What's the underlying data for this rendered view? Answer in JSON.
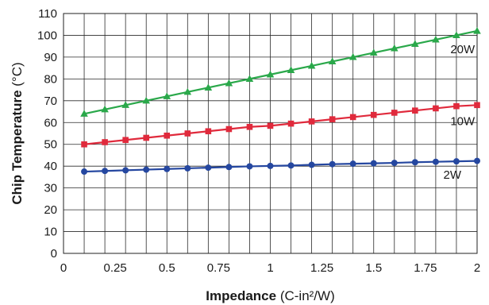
{
  "chart_data": {
    "type": "line",
    "xlabel": {
      "bold": "Impedance",
      "rest": "(C-in²/W)"
    },
    "ylabel": {
      "bold": "Chip Temperature",
      "rest": "(°C)"
    },
    "xlim": [
      0,
      2
    ],
    "ylim": [
      0,
      110
    ],
    "x_ticks": [
      "0",
      "0.25",
      "0.5",
      "0.75",
      "1",
      "1.25",
      "1.5",
      "1.75",
      "2"
    ],
    "y_ticks": [
      "0",
      "10",
      "20",
      "30",
      "40",
      "50",
      "60",
      "70",
      "80",
      "90",
      "100",
      "110"
    ],
    "x_tick_values": [
      0,
      0.25,
      0.5,
      0.75,
      1,
      1.25,
      1.5,
      1.75,
      2
    ],
    "y_tick_values": [
      0,
      10,
      20,
      30,
      40,
      50,
      60,
      70,
      80,
      90,
      100,
      110
    ],
    "grid": "vertical lines at every 0.1 impedance; horizontal lines at every 10 °C",
    "series": [
      {
        "name": "20W",
        "color": "#2aa84a",
        "marker": "triangle",
        "x": [
          0.1,
          0.2,
          0.3,
          0.4,
          0.5,
          0.6,
          0.7,
          0.8,
          0.9,
          1.0,
          1.1,
          1.2,
          1.3,
          1.4,
          1.5,
          1.6,
          1.7,
          1.8,
          1.9,
          2.0
        ],
        "values": [
          64,
          66,
          68,
          70,
          72,
          74,
          76,
          78,
          80,
          82,
          84,
          86,
          88,
          90,
          92,
          94,
          96,
          98,
          100,
          102
        ]
      },
      {
        "name": "10W",
        "color": "#e02a3c",
        "marker": "square",
        "x": [
          0.1,
          0.2,
          0.3,
          0.4,
          0.5,
          0.6,
          0.7,
          0.8,
          0.9,
          1.0,
          1.1,
          1.2,
          1.3,
          1.4,
          1.5,
          1.6,
          1.7,
          1.8,
          1.9,
          2.0
        ],
        "values": [
          50,
          51,
          52,
          53,
          54,
          55,
          56,
          57,
          58,
          58.5,
          59.5,
          60.5,
          61.5,
          62.5,
          63.5,
          64.5,
          65.5,
          66.5,
          67.5,
          68
        ]
      },
      {
        "name": "2W",
        "color": "#2547a0",
        "marker": "circle",
        "x": [
          0.1,
          0.2,
          0.3,
          0.4,
          0.5,
          0.6,
          0.7,
          0.8,
          0.9,
          1.0,
          1.1,
          1.2,
          1.3,
          1.4,
          1.5,
          1.6,
          1.7,
          1.8,
          1.9,
          2.0
        ],
        "values": [
          37.5,
          37.8,
          38.1,
          38.4,
          38.7,
          39,
          39.3,
          39.6,
          39.9,
          40.1,
          40.3,
          40.6,
          40.9,
          41.1,
          41.3,
          41.5,
          41.8,
          42,
          42.2,
          42.4
        ]
      }
    ]
  }
}
